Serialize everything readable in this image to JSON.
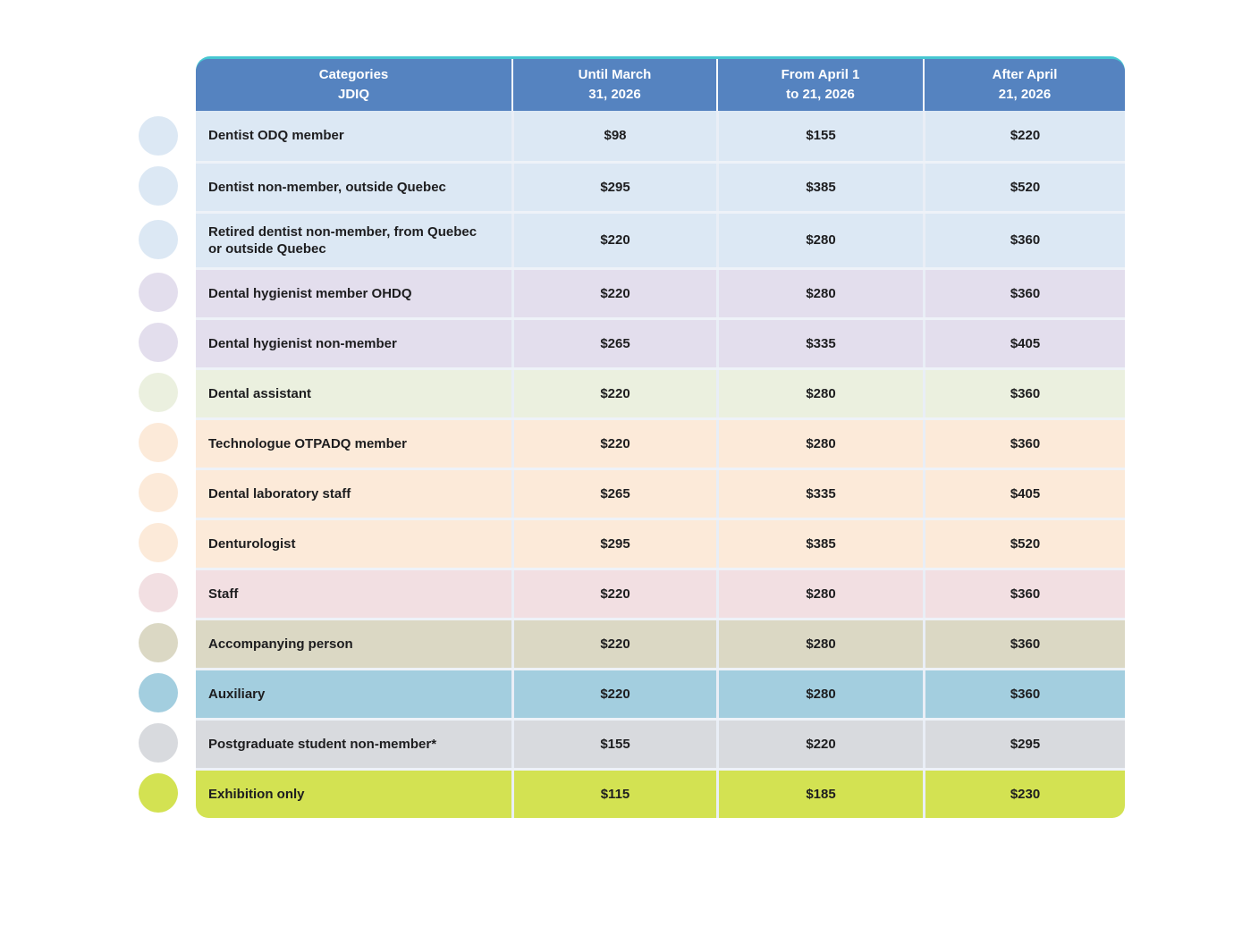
{
  "table": {
    "style": {
      "header_bg": "#5583c0",
      "accent_top_color": "#47c7d2",
      "text_color": "#1d1d1f",
      "separator_color": "#e9eef6"
    },
    "header": {
      "columns": [
        {
          "label": "Categories\nJDIQ"
        },
        {
          "label": "Until March\n31, 2026"
        },
        {
          "label": "From April 1\nto 21, 2026"
        },
        {
          "label": "After April\n21, 2026"
        }
      ]
    },
    "rows": [
      {
        "category": "Dentist ODQ member",
        "prices": [
          "$98",
          "$155",
          "$220"
        ],
        "color": "#dce8f4",
        "tall": false
      },
      {
        "category": "Dentist non-member, outside Quebec",
        "prices": [
          "$295",
          "$385",
          "$520"
        ],
        "color": "#dce8f4",
        "tall": false
      },
      {
        "category": "Retired dentist non-member, from Quebec or outside Quebec",
        "prices": [
          "$220",
          "$280",
          "$360"
        ],
        "color": "#dce8f4",
        "tall": true
      },
      {
        "category": "Dental hygienist member OHDQ",
        "prices": [
          "$220",
          "$280",
          "$360"
        ],
        "color": "#e3deed",
        "tall": false
      },
      {
        "category": "Dental hygienist non-member",
        "prices": [
          "$265",
          "$335",
          "$405"
        ],
        "color": "#e3deed",
        "tall": false
      },
      {
        "category": "Dental assistant",
        "prices": [
          "$220",
          "$280",
          "$360"
        ],
        "color": "#ebf0df",
        "tall": false
      },
      {
        "category": "Technologue OTPADQ member",
        "prices": [
          "$220",
          "$280",
          "$360"
        ],
        "color": "#fcead9",
        "tall": false
      },
      {
        "category": "Dental laboratory staff",
        "prices": [
          "$265",
          "$335",
          "$405"
        ],
        "color": "#fcead9",
        "tall": false
      },
      {
        "category": "Denturologist",
        "prices": [
          "$295",
          "$385",
          "$520"
        ],
        "color": "#fcead9",
        "tall": false
      },
      {
        "category": "Staff",
        "prices": [
          "$220",
          "$280",
          "$360"
        ],
        "color": "#f2dfe2",
        "tall": false
      },
      {
        "category": "Accompanying person",
        "prices": [
          "$220",
          "$280",
          "$360"
        ],
        "color": "#dbd8c4",
        "tall": false
      },
      {
        "category": "Auxiliary",
        "prices": [
          "$220",
          "$280",
          "$360"
        ],
        "color": "#a3cedf",
        "tall": false
      },
      {
        "category": "Postgraduate student non-member*",
        "prices": [
          "$155",
          "$220",
          "$295"
        ],
        "color": "#d8dade",
        "tall": false
      },
      {
        "category": "Exhibition only",
        "prices": [
          "$115",
          "$185",
          "$230"
        ],
        "color": "#d3e252",
        "tall": false
      }
    ]
  },
  "chart_data": {
    "type": "table",
    "title": "Categories JDIQ",
    "columns": [
      "Categories JDIQ",
      "Until March 31, 2026",
      "From April 1 to 21, 2026",
      "After April 21, 2026"
    ],
    "rows": [
      [
        "Dentist ODQ member",
        98,
        155,
        220
      ],
      [
        "Dentist non-member, outside Quebec",
        295,
        385,
        520
      ],
      [
        "Retired dentist non-member, from Quebec or outside Quebec",
        220,
        280,
        360
      ],
      [
        "Dental hygienist member OHDQ",
        220,
        280,
        360
      ],
      [
        "Dental hygienist non-member",
        265,
        335,
        405
      ],
      [
        "Dental assistant",
        220,
        280,
        360
      ],
      [
        "Technologue OTPADQ member",
        220,
        280,
        360
      ],
      [
        "Dental laboratory staff",
        265,
        335,
        405
      ],
      [
        "Denturologist",
        295,
        385,
        520
      ],
      [
        "Staff",
        220,
        280,
        360
      ],
      [
        "Accompanying person",
        220,
        280,
        360
      ],
      [
        "Auxiliary",
        220,
        280,
        360
      ],
      [
        "Postgraduate student non-member*",
        155,
        220,
        295
      ],
      [
        "Exhibition only",
        115,
        185,
        230
      ]
    ],
    "unit": "$",
    "layout": "category rows color-grouped with matching left color dots"
  }
}
